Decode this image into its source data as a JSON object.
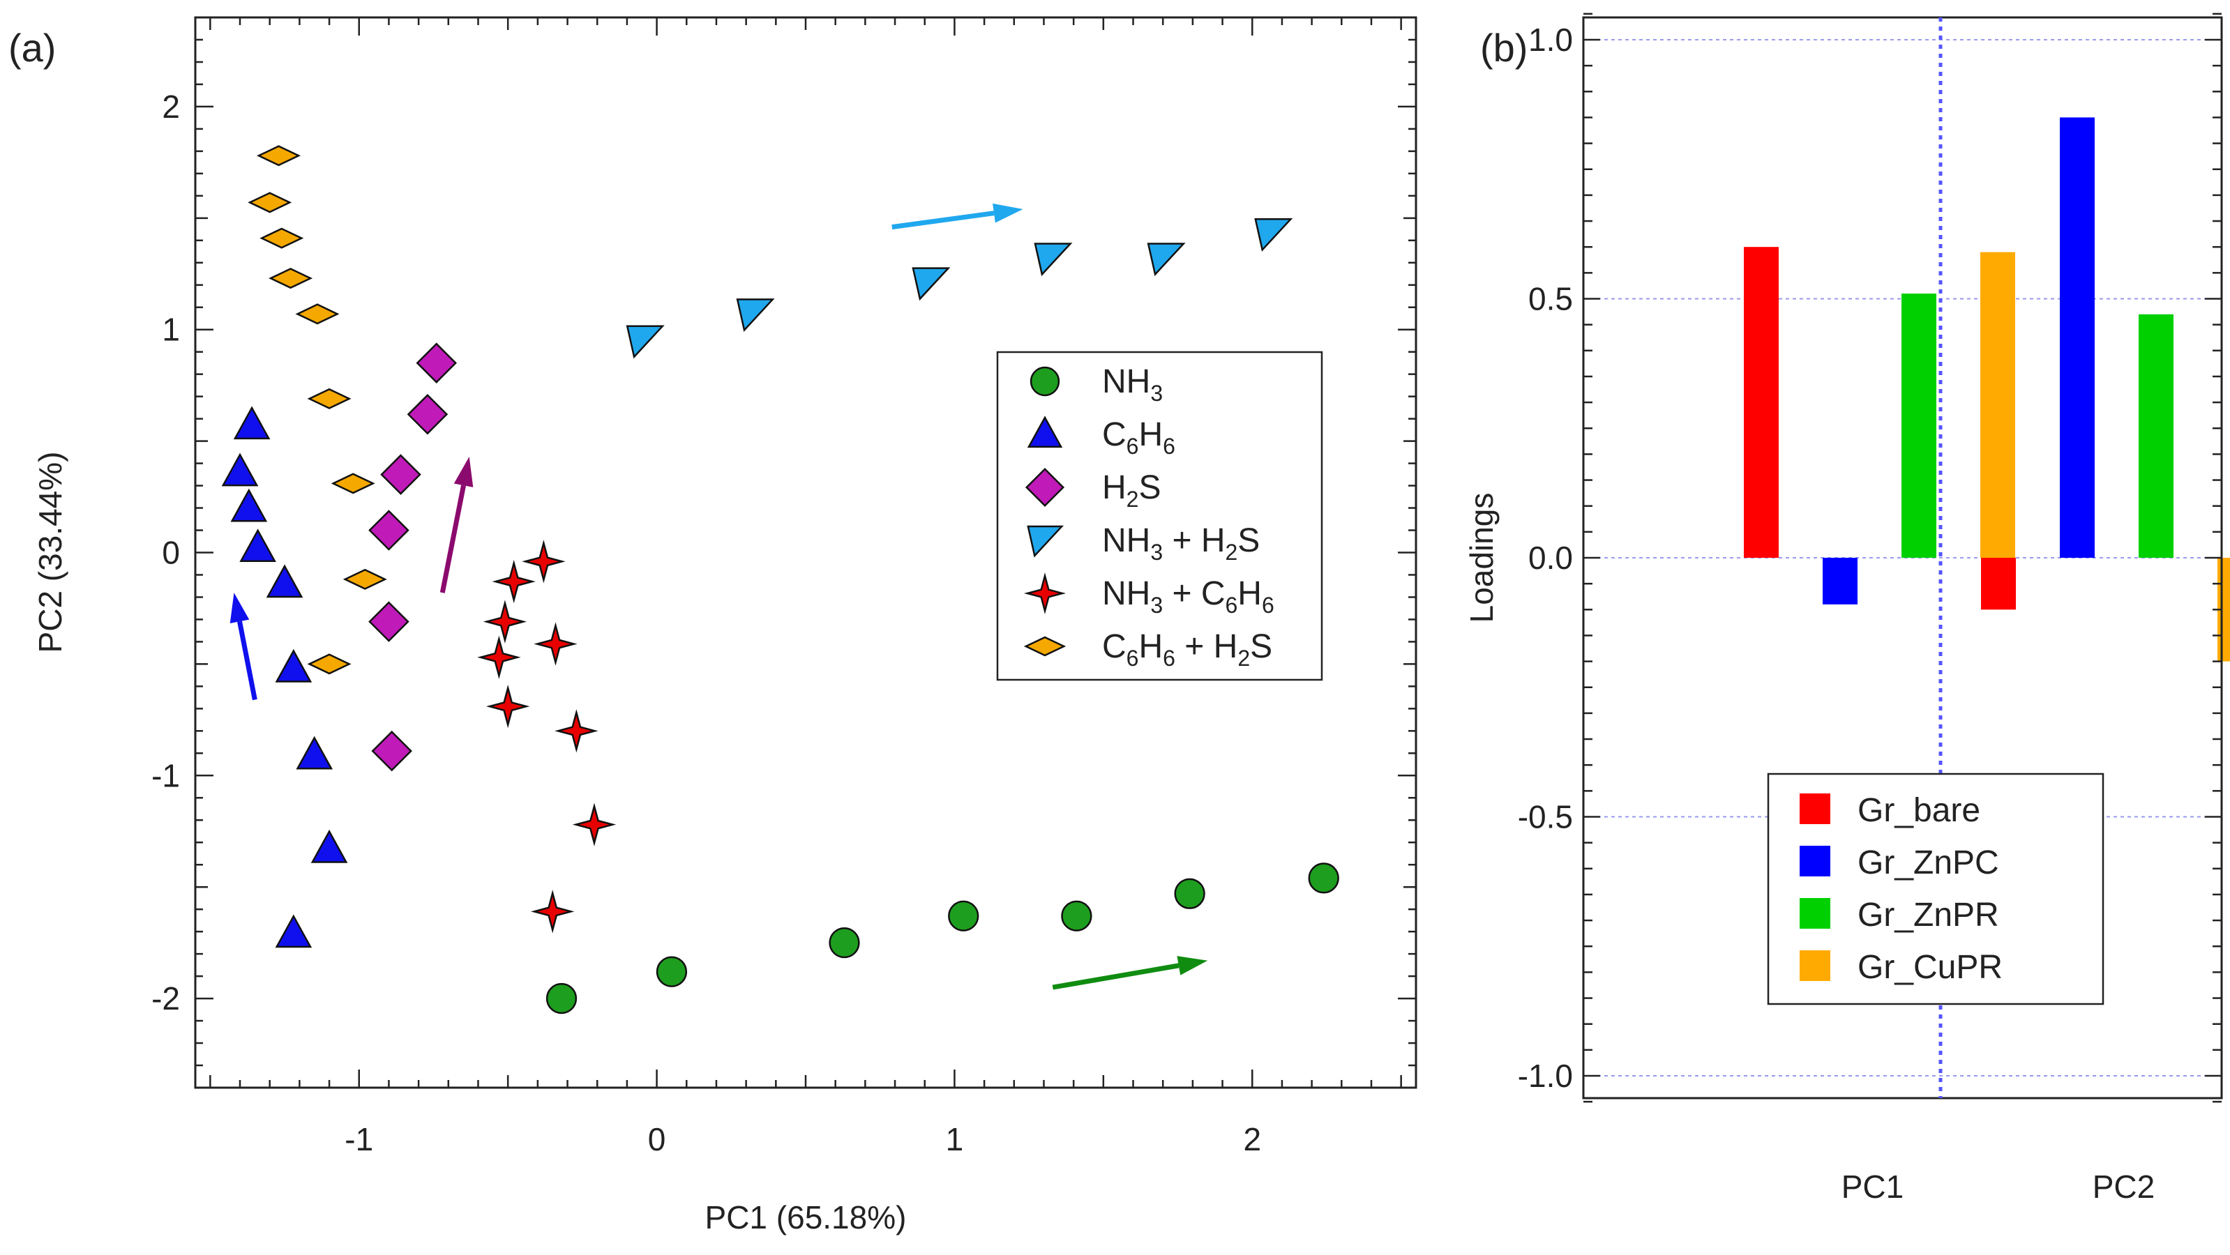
{
  "chart_data": [
    {
      "panel": "(a)",
      "type": "scatter",
      "xlabel": "PC1 (65.18%)",
      "ylabel": "PC2 (33.44%)",
      "xlim": [
        -1.55,
        2.55
      ],
      "ylim": [
        -2.4,
        2.4
      ],
      "xticks": [
        -1,
        0,
        1,
        2
      ],
      "yticks": [
        -2,
        -1,
        0,
        1,
        2
      ],
      "grid": false,
      "legend_position": "center-right",
      "series": [
        {
          "name": "NH3",
          "label_main": "NH",
          "label_sub": "3",
          "label_rest": "",
          "marker": "circle",
          "color": "#1e9e1e",
          "x": [
            -0.32,
            0.05,
            0.63,
            1.03,
            1.41,
            1.79,
            2.24
          ],
          "y": [
            -2.0,
            -1.88,
            -1.75,
            -1.63,
            -1.63,
            -1.53,
            -1.46
          ]
        },
        {
          "name": "C6H6",
          "label_main": "C",
          "label_sub": "6",
          "label_mid": "H",
          "label_sub2": "6",
          "marker": "triangle",
          "color": "#1010ee",
          "x": [
            -1.36,
            -1.4,
            -1.37,
            -1.34,
            -1.25,
            -1.22,
            -1.15,
            -1.1,
            -1.22
          ],
          "y": [
            0.57,
            0.36,
            0.2,
            0.02,
            -0.14,
            -0.52,
            -0.91,
            -1.33,
            -1.71
          ]
        },
        {
          "name": "H2S",
          "label_main": "H",
          "label_sub": "2",
          "label_rest": "S",
          "marker": "diamond",
          "color": "#c01ab8",
          "x": [
            -0.74,
            -0.77,
            -0.86,
            -0.9,
            -0.9,
            -0.89
          ],
          "y": [
            0.85,
            0.62,
            0.35,
            0.1,
            -0.31,
            -0.89
          ]
        },
        {
          "name": "NH3 + H2S",
          "marker": "flag",
          "color": "#20a8ee",
          "x": [
            -0.04,
            0.33,
            0.92,
            1.33,
            1.71,
            2.07
          ],
          "y": [
            0.95,
            1.07,
            1.21,
            1.32,
            1.32,
            1.43
          ]
        },
        {
          "name": "NH3 + C6H6",
          "marker": "star4",
          "color": "#e80000",
          "x": [
            -0.38,
            -0.48,
            -0.51,
            -0.53,
            -0.34,
            -0.5,
            -0.27,
            -0.21,
            -0.35
          ],
          "y": [
            -0.04,
            -0.13,
            -0.31,
            -0.47,
            -0.41,
            -0.69,
            -0.8,
            -1.22,
            -1.61
          ]
        },
        {
          "name": "C6H6 + H2S",
          "marker": "flatdiamond",
          "color": "#f5a800",
          "x": [
            -1.27,
            -1.3,
            -1.26,
            -1.23,
            -1.14,
            -1.1,
            -1.02,
            -0.98,
            -1.1
          ],
          "y": [
            1.78,
            1.57,
            1.41,
            1.23,
            1.07,
            0.69,
            0.31,
            -0.12,
            -0.5
          ]
        }
      ],
      "arrows": [
        {
          "color": "#1010ee",
          "from": [
            -1.35,
            -0.66
          ],
          "to": [
            -1.42,
            -0.18
          ]
        },
        {
          "color": "#8b0a6e",
          "from": [
            -0.72,
            -0.18
          ],
          "to": [
            -0.63,
            0.43
          ]
        },
        {
          "color": "#20a8ee",
          "from": [
            0.79,
            1.46
          ],
          "to": [
            1.23,
            1.54
          ]
        },
        {
          "color": "#108c10",
          "from": [
            1.33,
            -1.95
          ],
          "to": [
            1.85,
            -1.83
          ]
        }
      ]
    },
    {
      "panel": "(b)",
      "type": "bar",
      "ylabel": "Loadings",
      "categories": [
        "PC1",
        "PC2"
      ],
      "ylim": [
        -1.05,
        1.05
      ],
      "yticks": [
        -1.0,
        -0.5,
        0.0,
        0.5,
        1.0
      ],
      "ytick_labels": [
        "-1.0",
        "-0.5",
        "0.0",
        "0.5",
        "1.0"
      ],
      "grid": true,
      "legend_position": "bottom-center",
      "series": [
        {
          "name": "Gr_bare",
          "color": "#ff0000",
          "values": [
            0.6,
            -0.1
          ]
        },
        {
          "name": "Gr_ZnPC",
          "color": "#0000ff",
          "values": [
            -0.09,
            0.85
          ]
        },
        {
          "name": "Gr_ZnPR",
          "color": "#00d000",
          "values": [
            0.51,
            0.47
          ]
        },
        {
          "name": "Gr_CuPR",
          "color": "#ffaa00",
          "values": [
            0.59,
            -0.2
          ]
        }
      ]
    }
  ]
}
